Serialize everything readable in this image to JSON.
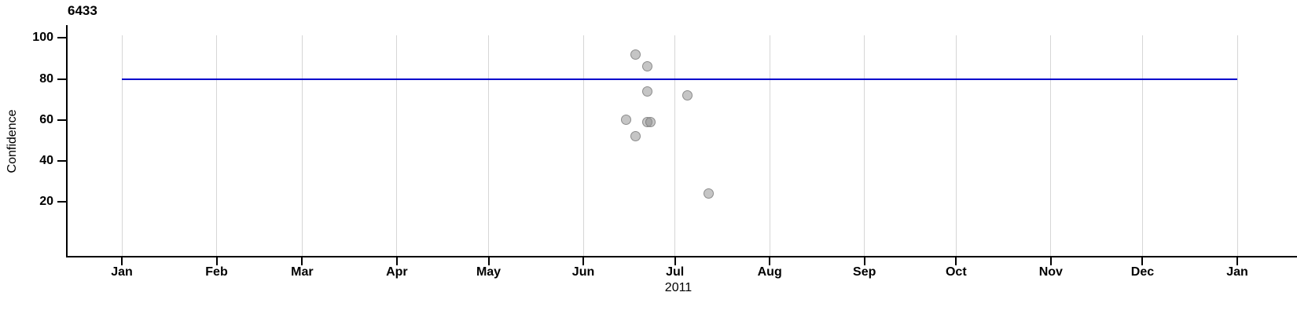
{
  "chart": {
    "title": "6433",
    "ylabel": "Confidence",
    "xlabel": "2011",
    "colors": {
      "reference_line": "#0000CC",
      "point_fill": "#C6C6C6",
      "point_border": "#8F8F8F",
      "gridline": "#D6D6D6",
      "axis": "#000000",
      "background": "#FFFFFF"
    }
  },
  "chart_data": {
    "type": "scatter",
    "title": "6433",
    "xlabel": "2011",
    "ylabel": "Confidence",
    "grid": "vertical-only",
    "legend": "none",
    "x_axis": {
      "year": "2011",
      "tick_labels": [
        "Jan",
        "Feb",
        "Mar",
        "Apr",
        "May",
        "Jun",
        "Jul",
        "Aug",
        "Sep",
        "Oct",
        "Nov",
        "Dec",
        "Jan"
      ],
      "tick_days_of_year": [
        0,
        31,
        59,
        90,
        120,
        151,
        181,
        212,
        243,
        273,
        304,
        334,
        365
      ]
    },
    "y_axis": {
      "ticks": [
        20,
        40,
        60,
        80,
        100
      ],
      "ylim": [
        -6,
        106
      ]
    },
    "reference_line": {
      "confidence": 80,
      "start_day_of_year": 0,
      "end_day_of_year": 365,
      "color": "#0000CC"
    },
    "points": [
      {
        "date": "2011-06-15",
        "day_of_year": 165,
        "confidence": 60
      },
      {
        "date": "2011-06-18",
        "day_of_year": 168,
        "confidence": 92
      },
      {
        "date": "2011-06-18",
        "day_of_year": 168,
        "confidence": 52
      },
      {
        "date": "2011-06-22",
        "day_of_year": 172,
        "confidence": 86
      },
      {
        "date": "2011-06-22",
        "day_of_year": 172,
        "confidence": 74
      },
      {
        "date": "2011-06-22",
        "day_of_year": 172,
        "confidence": 59
      },
      {
        "date": "2011-06-23",
        "day_of_year": 173,
        "confidence": 59
      },
      {
        "date": "2011-07-05",
        "day_of_year": 185,
        "confidence": 72
      },
      {
        "date": "2011-07-12",
        "day_of_year": 192,
        "confidence": 24
      }
    ]
  }
}
